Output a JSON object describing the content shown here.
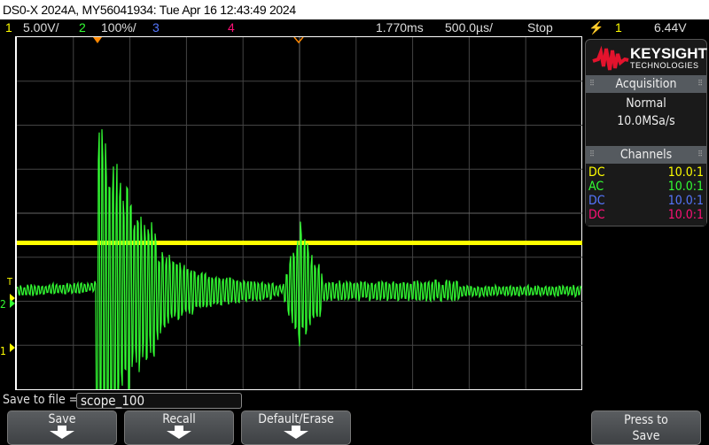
{
  "title": "DS0-X 2024A, MY56041934: Tue Apr 16 12:43:49 2024",
  "status": {
    "ch1_num": "1",
    "ch1_scale": "5.00V/",
    "ch2_num": "2",
    "ch2_scale": "100%/",
    "ch3_num": "3",
    "ch4_num": "4",
    "time_delay": "1.770ms",
    "time_scale": "500.0µs/",
    "run_state": "Stop",
    "trigger_icon": "rising-edge-icon",
    "trigger_source": "1",
    "trigger_level": "6.44V"
  },
  "logo": {
    "brand": "KEYSIGHT",
    "sub": "TECHNOLOGIES"
  },
  "acquisition": {
    "title": "Acquisition",
    "mode": "Normal",
    "rate": "10.0MSa/s"
  },
  "channels": {
    "title": "Channels",
    "rows": [
      {
        "coupling": "DC",
        "probe": "10.0:1",
        "color": "#ffff00"
      },
      {
        "coupling": "AC",
        "probe": "10.0:1",
        "color": "#33ff33"
      },
      {
        "coupling": "DC",
        "probe": "10.0:1",
        "color": "#5577ff"
      },
      {
        "coupling": "DC",
        "probe": "10.0:1",
        "color": "#ff1177"
      }
    ]
  },
  "markers": {
    "trigger": "T",
    "ch2": "2",
    "ch1": "1"
  },
  "save": {
    "label": "Save to file =",
    "filename": "scope_100"
  },
  "softkeys": [
    {
      "label": "Save"
    },
    {
      "label": "Recall"
    },
    {
      "label": "Default/Erase"
    },
    {
      "label": "Press to",
      "label2": "Save"
    }
  ],
  "colors": {
    "ch1": "#ffff00",
    "ch2": "#33ff33",
    "ch3": "#5577ff",
    "ch4": "#ff1177",
    "marker": "#ff8800"
  }
}
